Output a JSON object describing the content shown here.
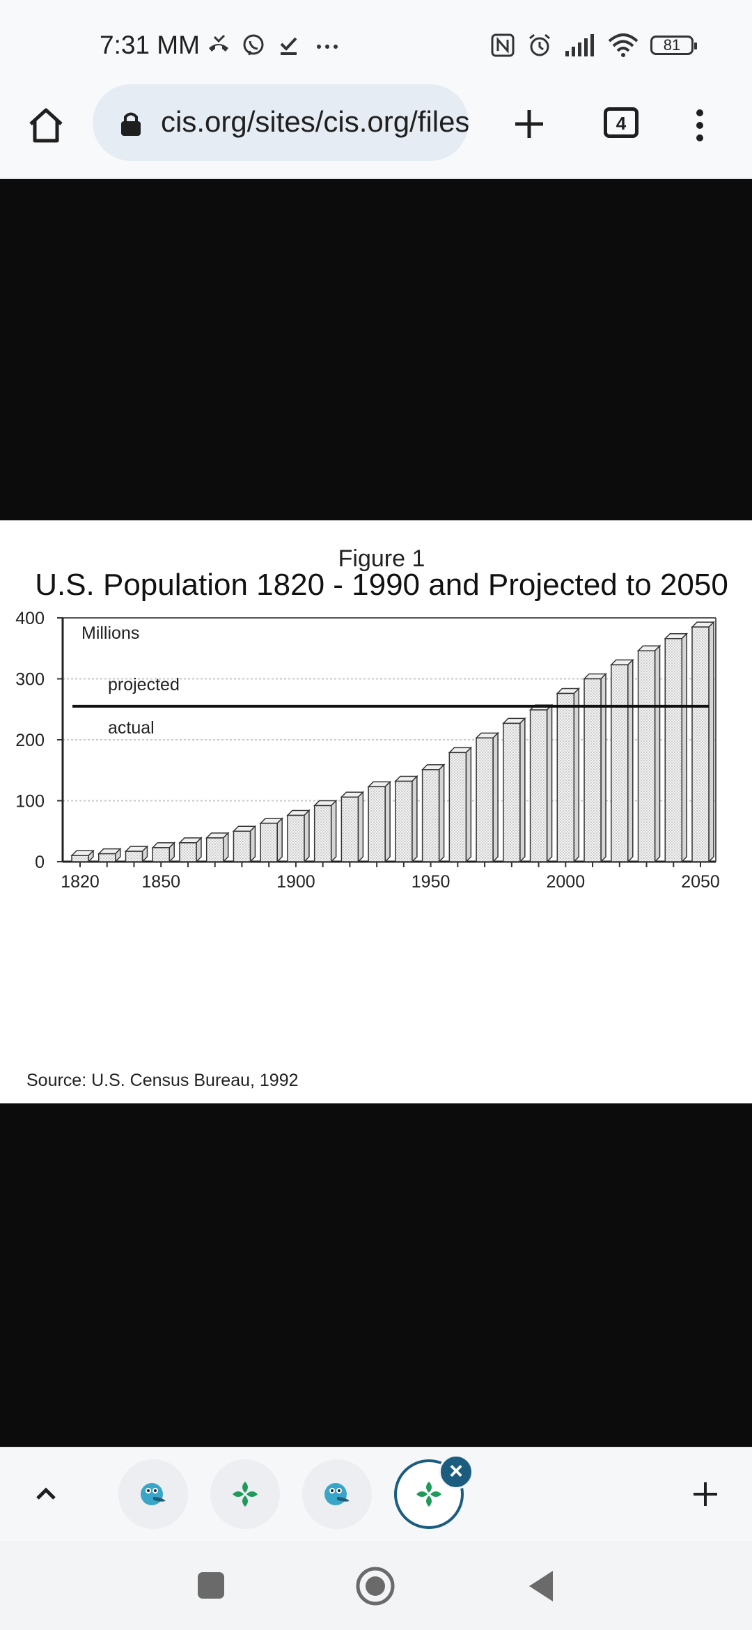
{
  "status_bar": {
    "time": "7:31 MM",
    "battery": "81"
  },
  "browser": {
    "url": "cis.org/sites/cis.org/files",
    "tab_count": "4"
  },
  "figure": {
    "caption": "Figure 1",
    "unit_label": "Millions",
    "source": "Source: U.S. Census Bureau, 1992"
  },
  "chart_data": {
    "type": "bar",
    "title": "U.S. Population 1820 - 1990 and Projected to 2050",
    "ylabel": "Millions",
    "ylim": [
      0,
      400
    ],
    "yticks": [
      0,
      100,
      200,
      300,
      400
    ],
    "xticks": [
      "1820",
      "1850",
      "1900",
      "1950",
      "2000",
      "2050"
    ],
    "x": [
      1820,
      1830,
      1840,
      1850,
      1860,
      1870,
      1880,
      1890,
      1900,
      1910,
      1920,
      1930,
      1940,
      1950,
      1960,
      1970,
      1980,
      1990,
      2000,
      2010,
      2020,
      2030,
      2040,
      2050
    ],
    "values": [
      10,
      13,
      17,
      23,
      31,
      39,
      50,
      63,
      76,
      92,
      106,
      123,
      132,
      151,
      179,
      203,
      227,
      249,
      276,
      300,
      323,
      346,
      366,
      385
    ],
    "reference_line": {
      "value": 255,
      "label_above": "projected",
      "label_below": "actual"
    },
    "grid": true
  },
  "tab_strip": {
    "tabs": [
      {
        "icon": "pelican-app-icon"
      },
      {
        "icon": "green-leaf-app-icon"
      },
      {
        "icon": "pelican-app-icon"
      },
      {
        "icon": "green-leaf-app-icon",
        "active": true
      }
    ]
  }
}
